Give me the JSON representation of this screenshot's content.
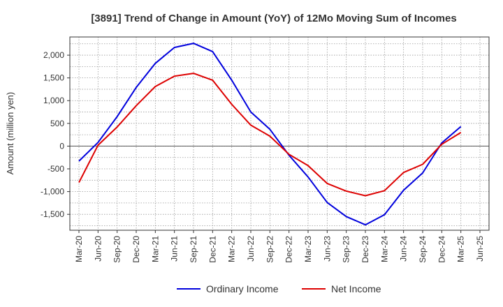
{
  "chart_data": {
    "type": "line",
    "title": "[3891]  Trend of Change in Amount (YoY) of 12Mo Moving Sum of Incomes",
    "xlabel": "",
    "ylabel": "Amount (million yen)",
    "ylim": [
      -1850,
      2400
    ],
    "grid": true,
    "legend_position": "bottom",
    "x_ticks": [
      "Mar-20",
      "Jun-20",
      "Sep-20",
      "Dec-20",
      "Mar-21",
      "Jun-21",
      "Sep-21",
      "Dec-21",
      "Mar-22",
      "Jun-22",
      "Sep-22",
      "Dec-22",
      "Mar-23",
      "Jun-23",
      "Sep-23",
      "Dec-23",
      "Mar-24",
      "Jun-24",
      "Sep-24",
      "Dec-24",
      "Mar-25",
      "Jun-25"
    ],
    "y_ticks": [
      2000,
      1500,
      1000,
      500,
      0,
      -500,
      -1000,
      -1500
    ],
    "y_tick_labels": [
      "2,000",
      "1,500",
      "1,000",
      "500",
      "0",
      "-500",
      "-1,000",
      "-1,500"
    ],
    "series": [
      {
        "name": "Ordinary Income",
        "color": "#0000dd",
        "values": [
          -330,
          80,
          650,
          1290,
          1820,
          2170,
          2260,
          2080,
          1450,
          750,
          370,
          -200,
          -680,
          -1240,
          -1550,
          -1730,
          -1510,
          -970,
          -590,
          70,
          430
        ]
      },
      {
        "name": "Net Income",
        "color": "#dd0000",
        "values": [
          -800,
          20,
          420,
          890,
          1310,
          1540,
          1600,
          1450,
          920,
          460,
          220,
          -180,
          -430,
          -820,
          -990,
          -1090,
          -980,
          -580,
          -400,
          40,
          300
        ]
      }
    ]
  }
}
